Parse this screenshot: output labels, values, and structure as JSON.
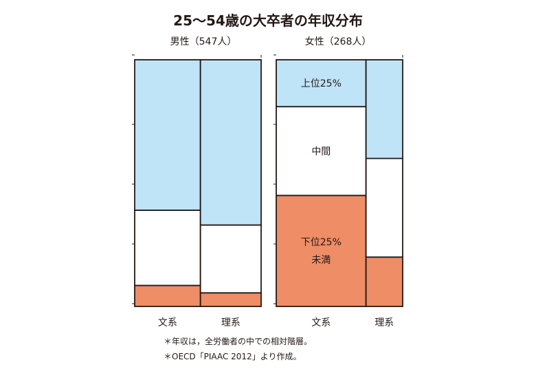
{
  "title": "25〜54歳の大卒者の年収分布",
  "notes": [
    "＊年収は，全労働者の中での相対階層。",
    "＊OECD「PIAAC 2012」より作成。"
  ],
  "colors": {
    "top": "#bfe3f7",
    "middle": "#ffffff",
    "bottom": "#ee8d66",
    "stroke": "#231815"
  },
  "chart_data": {
    "type": "mosaic",
    "title": "25〜54歳の大卒者の年収分布",
    "segments": [
      {
        "key": "bottom",
        "lines": [
          "下位25%",
          "未満"
        ]
      },
      {
        "key": "middle",
        "lines": [
          "中間"
        ]
      },
      {
        "key": "top",
        "lines": [
          "上位25%"
        ]
      }
    ],
    "panels": [
      {
        "label": "男性（547人）",
        "groups": [
          {
            "name": "文系",
            "width_share": 0.52,
            "bottom": 8.5,
            "middle": 30.5,
            "top": 61.0
          },
          {
            "name": "理系",
            "width_share": 0.48,
            "bottom": 5.5,
            "middle": 27.5,
            "top": 67.0
          }
        ]
      },
      {
        "label": "女性（268人）",
        "groups": [
          {
            "name": "文系",
            "width_share": 0.71,
            "bottom": 45.0,
            "middle": 36.0,
            "top": 19.0
          },
          {
            "name": "理系",
            "width_share": 0.29,
            "bottom": 20.0,
            "middle": 40.0,
            "top": 40.0
          }
        ]
      }
    ],
    "segment_labels_on": {
      "panel": 1,
      "group": 0
    }
  }
}
